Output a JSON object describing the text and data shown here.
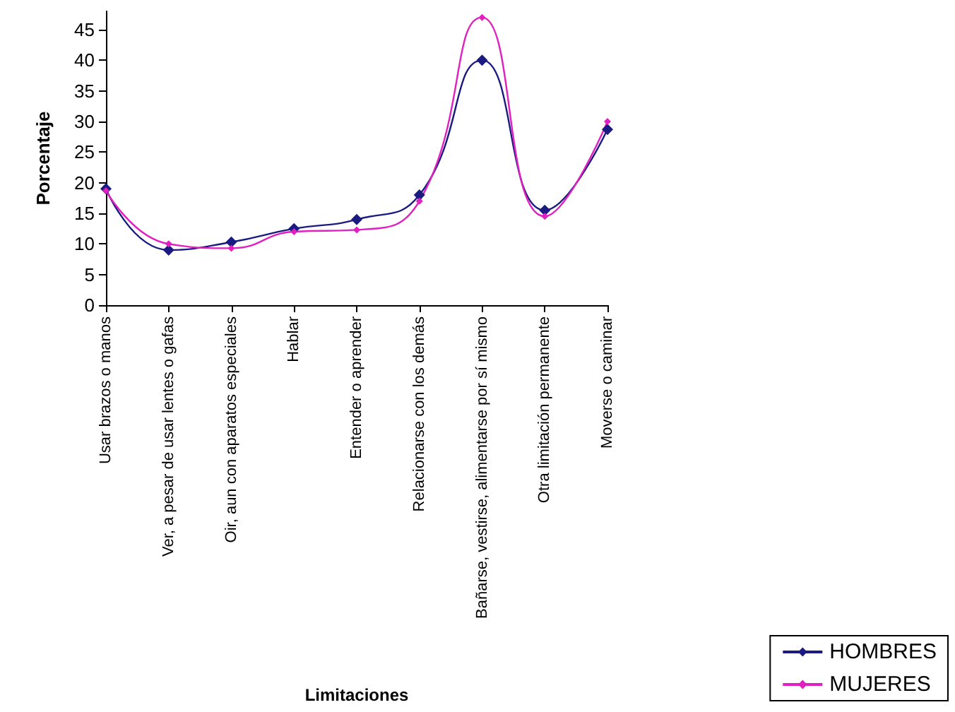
{
  "chart_data": {
    "type": "line",
    "xlabel": "Limitaciones",
    "ylabel": "Porcentaje",
    "categories": [
      "Usar brazos o manos",
      "Ver, a pesar de usar lentes o gafas",
      "Oir, aun con aparatos especiales",
      "Hablar",
      "Entender o aprender",
      "Relacionarse con los demás",
      "Bañarse, vestirse, alimentarse por sí mismo",
      "Otra limitación permanente",
      "Moverse o caminar"
    ],
    "series": [
      {
        "name": "HOMBRES",
        "color": "#1a1a80",
        "values": [
          19,
          9,
          10.3,
          12.5,
          14,
          18,
          40,
          15.5,
          28.7
        ]
      },
      {
        "name": "MUJERES",
        "color": "#e020c0",
        "values": [
          18.7,
          10,
          9.3,
          12,
          12.3,
          17,
          47,
          14.5,
          30
        ]
      }
    ],
    "ylim": [
      0,
      48
    ],
    "yticks": [
      0,
      5,
      10,
      15,
      20,
      25,
      30,
      35,
      40,
      45
    ],
    "grid": false,
    "legend": "bottom right",
    "marker": "diamond",
    "line_style": "solid"
  }
}
